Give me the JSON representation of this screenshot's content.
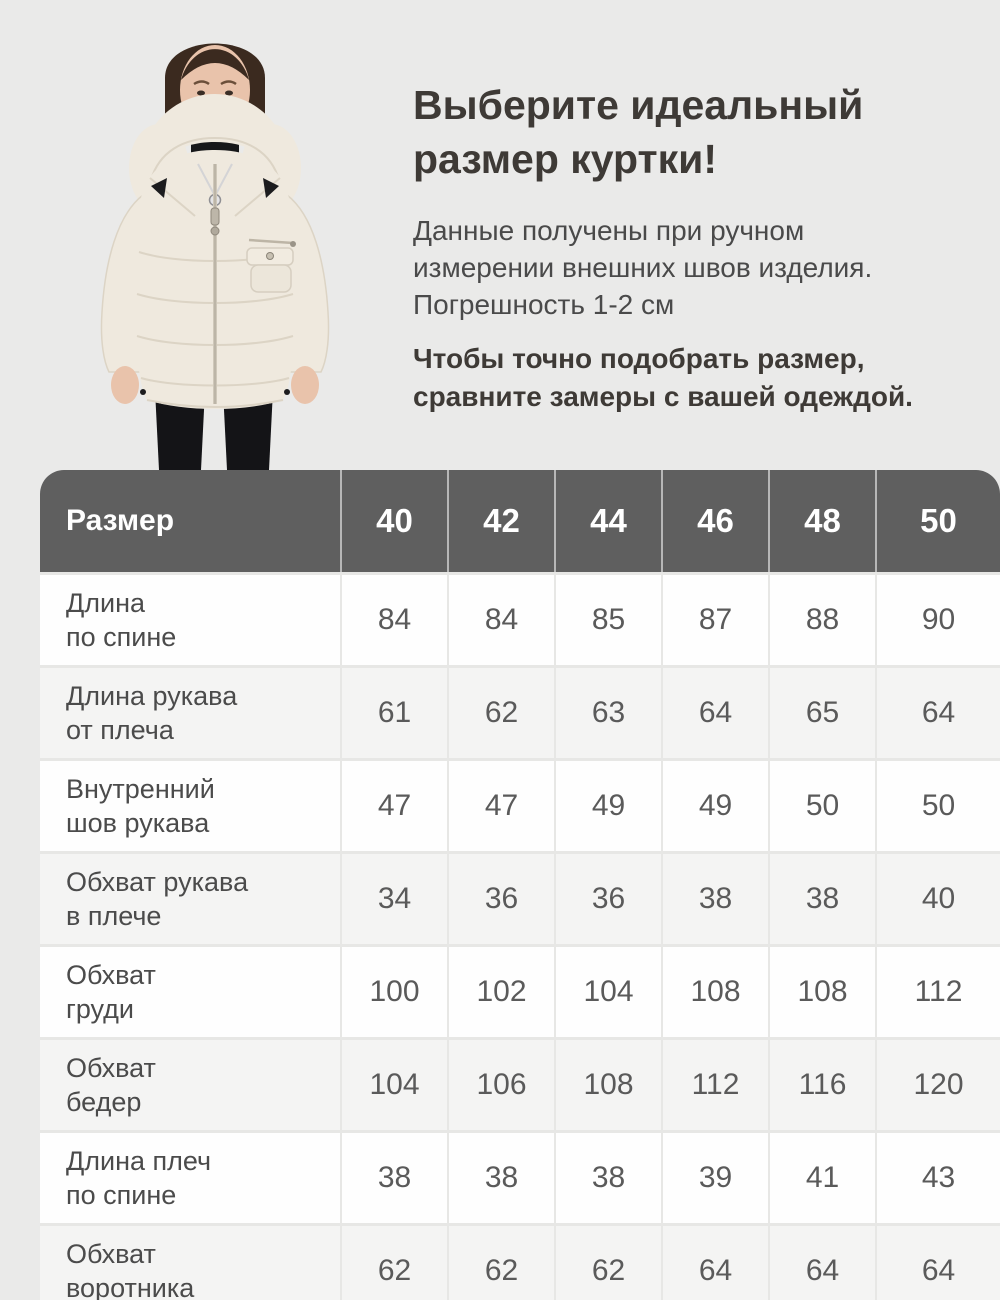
{
  "intro": {
    "title_lines": [
      "Выберите идеальный",
      "размер куртки!"
    ],
    "note_lines": [
      "Данные получены при ручном",
      "измерении внешних швов изделия.",
      "Погрешность 1-2 см"
    ],
    "advice_lines": [
      "Чтобы точно подобрать размер,",
      "сравните замеры с вашей одеждой."
    ]
  },
  "chart_data": {
    "type": "table",
    "title": "Выберите идеальный размер куртки!",
    "header": {
      "label": "Размер",
      "sizes": [
        "40",
        "42",
        "44",
        "46",
        "48",
        "50"
      ]
    },
    "rows": [
      {
        "label_lines": [
          "Длина",
          "по спине"
        ],
        "values": [
          84,
          84,
          85,
          87,
          88,
          90
        ]
      },
      {
        "label_lines": [
          "Длина рукава",
          "от плеча"
        ],
        "values": [
          61,
          62,
          63,
          64,
          65,
          64
        ]
      },
      {
        "label_lines": [
          "Внутренний",
          "шов рукава"
        ],
        "values": [
          47,
          47,
          49,
          49,
          50,
          50
        ]
      },
      {
        "label_lines": [
          "Обхват рукава",
          "в плече"
        ],
        "values": [
          34,
          36,
          36,
          38,
          38,
          40
        ]
      },
      {
        "label_lines": [
          "Обхват",
          "груди"
        ],
        "values": [
          100,
          102,
          104,
          108,
          108,
          112
        ]
      },
      {
        "label_lines": [
          "Обхват",
          "бедер"
        ],
        "values": [
          104,
          106,
          108,
          112,
          116,
          120
        ]
      },
      {
        "label_lines": [
          "Длина плеч",
          "по спине"
        ],
        "values": [
          38,
          38,
          38,
          39,
          41,
          43
        ]
      },
      {
        "label_lines": [
          "Обхват",
          "воротника"
        ],
        "values": [
          62,
          62,
          62,
          64,
          64,
          64
        ]
      }
    ],
    "layout": {
      "grid": "on",
      "alternating_rows": true,
      "units": "см"
    }
  },
  "colors": {
    "page_bg": "#eaeae9",
    "header_bg": "#5f5f5f",
    "header_text": "#ffffff",
    "row_bg": "#fefefe",
    "row_alt_bg": "#f4f4f3",
    "divider": "#e7e7e5",
    "title_text": "#3e3a36",
    "note_text": "#4a4a4a",
    "label_text": "#4b4b4b",
    "value_text": "#5a5a5a",
    "jacket": "#efe9de",
    "jacket_seam": "#dcd4c5",
    "pants": "#141417",
    "hair": "#3b2a1f",
    "skin": "#e9c3ab"
  }
}
